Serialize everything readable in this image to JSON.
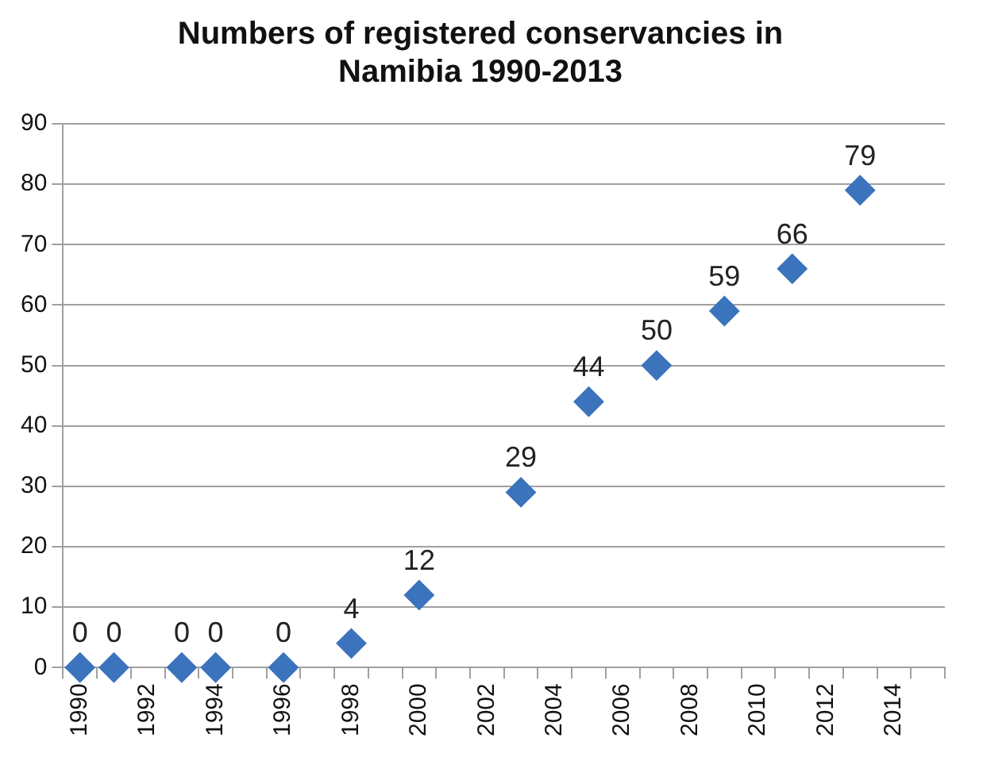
{
  "chart_data": {
    "type": "scatter",
    "title": "Numbers of registered conservancies in Namibia 1990-2013",
    "x": [
      1990,
      1991,
      1993,
      1994,
      1996,
      1998,
      2000,
      2003,
      2005,
      2007,
      2009,
      2011,
      2013
    ],
    "series": [
      {
        "color": "#3b73bc",
        "values": [
          0,
          0,
          0,
          0,
          0,
          4,
          12,
          29,
          44,
          50,
          59,
          66,
          79
        ]
      }
    ],
    "xlim": [
      1989.5,
      2015.5
    ],
    "xticks": [
      1990,
      1992,
      1994,
      1996,
      1998,
      2000,
      2002,
      2004,
      2006,
      2008,
      2010,
      2012,
      2014,
      {
        "value": 1989.5,
        "label": null
      },
      {
        "value": 1990.5,
        "label": null
      },
      {
        "value": 1991.5,
        "label": null
      },
      {
        "value": 1992.5,
        "label": null
      },
      {
        "value": 1993.5,
        "label": null
      },
      {
        "value": 1994.5,
        "label": null
      },
      {
        "value": 1995.5,
        "label": null
      },
      {
        "value": 1996.5,
        "label": null
      },
      {
        "value": 1997.5,
        "label": null
      },
      {
        "value": 1998.5,
        "label": null
      },
      {
        "value": 1999.5,
        "label": null
      },
      {
        "value": 2000.5,
        "label": null
      },
      {
        "value": 2001.5,
        "label": null
      },
      {
        "value": 2002.5,
        "label": null
      },
      {
        "value": 2003.5,
        "label": null
      },
      {
        "value": 2004.5,
        "label": null
      },
      {
        "value": 2005.5,
        "label": null
      },
      {
        "value": 2006.5,
        "label": null
      },
      {
        "value": 2007.5,
        "label": null
      },
      {
        "value": 2008.5,
        "label": null
      },
      {
        "value": 2009.5,
        "label": null
      },
      {
        "value": 2010.5,
        "label": null
      },
      {
        "value": 2011.5,
        "label": null
      },
      {
        "value": 2012.5,
        "label": null
      },
      {
        "value": 2013.5,
        "label": null
      },
      {
        "value": 2014.5,
        "label": null
      },
      {
        "value": 2015.5,
        "label": null
      }
    ],
    "ylim": [
      0,
      90
    ],
    "yticks": [
      0,
      10,
      20,
      30,
      40,
      50,
      60,
      70,
      80,
      90
    ],
    "grid": "y",
    "legend": false,
    "marker": "diamond",
    "data_labels": true
  }
}
